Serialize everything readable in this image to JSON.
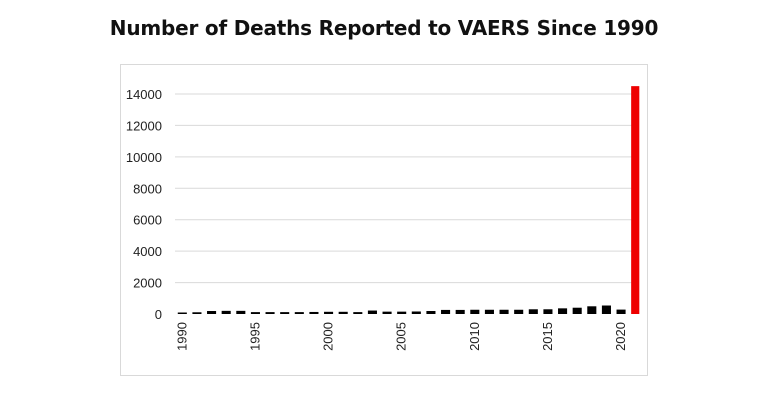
{
  "chart_data": {
    "type": "bar",
    "title": "Number of Deaths Reported to VAERS Since 1990",
    "xlabel": "",
    "ylabel": "",
    "ylim": [
      0,
      14000
    ],
    "yticks": [
      0,
      2000,
      4000,
      6000,
      8000,
      10000,
      12000,
      14000
    ],
    "xtick_labels": [
      "1990",
      "1995",
      "2000",
      "2005",
      "2010",
      "2015",
      "2020"
    ],
    "grid": true,
    "legend": null,
    "categories": [
      "1990",
      "1991",
      "1992",
      "1993",
      "1994",
      "1995",
      "1996",
      "1997",
      "1998",
      "1999",
      "2000",
      "2001",
      "2002",
      "2003",
      "2004",
      "2005",
      "2006",
      "2007",
      "2008",
      "2009",
      "2010",
      "2011",
      "2012",
      "2013",
      "2014",
      "2015",
      "2016",
      "2017",
      "2018",
      "2019",
      "2020",
      "2021"
    ],
    "values": [
      50,
      110,
      190,
      200,
      200,
      120,
      120,
      120,
      120,
      130,
      140,
      140,
      120,
      220,
      150,
      150,
      160,
      190,
      260,
      260,
      270,
      270,
      270,
      270,
      300,
      300,
      360,
      400,
      490,
      540,
      280,
      14500
    ],
    "bar_colors": {
      "default": "#000000",
      "highlight": "#ee0000"
    },
    "highlight_index": 31
  }
}
